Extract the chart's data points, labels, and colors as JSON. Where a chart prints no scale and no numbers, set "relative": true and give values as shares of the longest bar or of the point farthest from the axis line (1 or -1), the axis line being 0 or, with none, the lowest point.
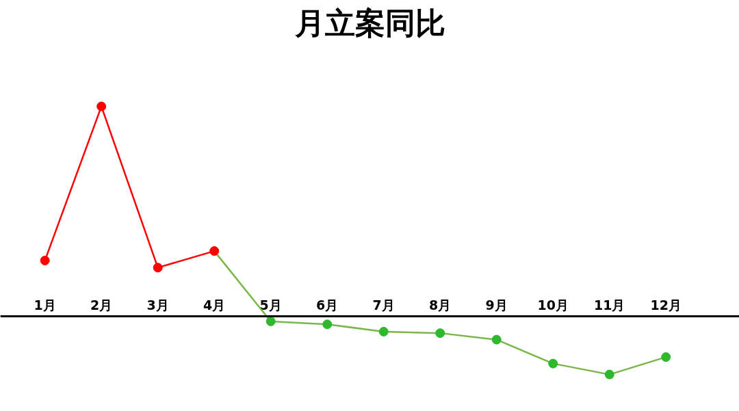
{
  "chart_data": {
    "type": "line",
    "title": "月立案同比",
    "relative": true,
    "categories": [
      "1月",
      "2月",
      "3月",
      "4月",
      "5月",
      "6月",
      "7月",
      "8月",
      "9月",
      "10月",
      "11月",
      "12月"
    ],
    "series": [
      {
        "color": "#7ab648",
        "colors": [
          null,
          null,
          null,
          null,
          "#2db82d",
          "#2db82d",
          "#2db82d",
          "#2db82d",
          "#2db82d",
          "#2db82d",
          "#2db82d",
          "#2db82d"
        ],
        "values": [
          null,
          null,
          null,
          0.311,
          -0.024,
          -0.038,
          -0.073,
          -0.08,
          -0.111,
          -0.225,
          -0.277,
          -0.194
        ]
      },
      {
        "color": "#ff0000",
        "values": [
          0.266,
          1,
          0.232,
          0.311,
          null,
          null,
          null,
          null,
          null,
          null,
          null,
          null
        ]
      }
    ],
    "marker": "circle",
    "line_style": "solid",
    "grid": false
  }
}
